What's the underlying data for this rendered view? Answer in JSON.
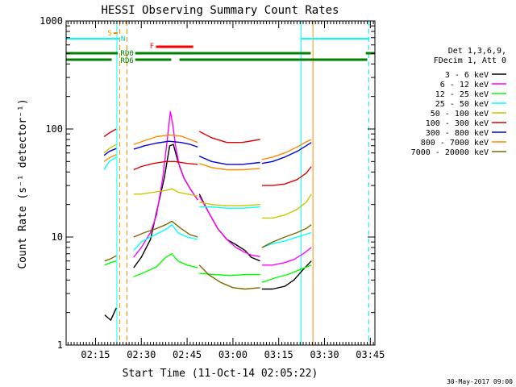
{
  "chart_data": {
    "type": "line",
    "title": "HESSI Observing Summary Count Rates",
    "xlabel": "Start Time (11-Oct-14 02:05:22)",
    "ylabel": "Count Rate (s⁻¹ detector⁻¹)",
    "ylog": true,
    "ylim": [
      1,
      1000
    ],
    "xlim_min": [
      5.37,
      106.5
    ],
    "x_ticks": [
      {
        "t": 15,
        "label": "02:15"
      },
      {
        "t": 30,
        "label": "02:30"
      },
      {
        "t": 45,
        "label": "02:45"
      },
      {
        "t": 60,
        "label": "03:00"
      },
      {
        "t": 75,
        "label": "03:15"
      },
      {
        "t": 90,
        "label": "03:30"
      },
      {
        "t": 105,
        "label": "03:45"
      }
    ],
    "y_ticks": [
      {
        "v": 1,
        "label": "1"
      },
      {
        "v": 10,
        "label": "10"
      },
      {
        "v": 100,
        "label": "100"
      },
      {
        "v": 1000,
        "label": "1000"
      }
    ],
    "legend": {
      "placement": "right",
      "header": [
        "Det 1,3,6,9,",
        "FDecim 1, Att 0"
      ],
      "entries": [
        {
          "label": "3 - 6 keV",
          "color": "#000000"
        },
        {
          "label": "6 - 12 keV",
          "color": "#ff00ff"
        },
        {
          "label": "12 - 25 keV",
          "color": "#00ff00"
        },
        {
          "label": "25 - 50 keV",
          "color": "#00ffff"
        },
        {
          "label": "50 - 100 keV",
          "color": "#c8c800"
        },
        {
          "label": "100 - 300 keV",
          "color": "#e00000"
        },
        {
          "label": "300 - 800 keV",
          "color": "#0000e0"
        },
        {
          "label": "800 - 7000 keV",
          "color": "#ff8c00"
        },
        {
          "label": "7000 - 20000 keV",
          "color": "#7a6a00"
        }
      ]
    },
    "flag_labels": {
      "saa": "S",
      "night": "N",
      "flare": "F",
      "rd0": "RD0",
      "rd6": "RD6"
    },
    "flags": {
      "saa": [
        [
          20.9,
          22.3
        ]
      ],
      "night": [
        [
          5.37,
          22.9
        ],
        [
          82.3,
          104.5
        ]
      ],
      "flare": [
        [
          34.8,
          47.0
        ]
      ],
      "rd0": [
        [
          5.37,
          22.3
        ],
        [
          28.0,
          85.5
        ],
        [
          103.5,
          106.5
        ]
      ],
      "rd6": [
        [
          5.37,
          20.3
        ],
        [
          28.0,
          39.8
        ],
        [
          42.5,
          104.0
        ]
      ]
    },
    "vlines": [
      {
        "t": 5.37,
        "color": "#00ffff",
        "style": "solid"
      },
      {
        "t": 22.0,
        "color": "#00ffff",
        "style": "solid"
      },
      {
        "t": 22.9,
        "color": "#ff8c00",
        "style": "dashed"
      },
      {
        "t": 25.3,
        "color": "#ff8c00",
        "style": "dashed"
      },
      {
        "t": 82.3,
        "color": "#00ffff",
        "style": "solid"
      },
      {
        "t": 86.2,
        "color": "#ff8c00",
        "style": "solid"
      },
      {
        "t": 104.5,
        "color": "#00ffff",
        "style": "dashed"
      }
    ],
    "series": [
      {
        "label": "3 - 6 keV",
        "color": "#000000",
        "segments": [
          {
            "x": [
              18.0,
              20.0,
              21.8
            ],
            "y": [
              1.9,
              1.7,
              2.2
            ]
          },
          {
            "x": [
              27.5,
              30,
              33,
              35,
              37.5,
              39.3,
              40.5,
              42,
              44,
              46,
              48.5
            ],
            "y": [
              5.2,
              6.5,
              9.5,
              17,
              35,
              70,
              72,
              50,
              35,
              28,
              22
            ]
          },
          {
            "x": [
              49,
              52,
              55,
              58,
              61,
              64,
              66,
              68.9
            ],
            "y": [
              25,
              17,
              12,
              9.5,
              8.5,
              7.5,
              6.5,
              6
            ]
          },
          {
            "x": [
              69.5,
              73,
              77,
              80,
              83,
              85.7
            ],
            "y": [
              3.3,
              3.3,
              3.5,
              4,
              5,
              6
            ]
          }
        ]
      },
      {
        "label": "6 - 12 keV",
        "color": "#ff00ff",
        "segments": [
          {
            "x": [
              27.5,
              30,
              33,
              35,
              37,
              38.5,
              39.5,
              40.3,
              41.2,
              42.5,
              44,
              46,
              48.5
            ],
            "y": [
              6.5,
              8,
              11,
              16,
              35,
              80,
              145,
              110,
              70,
              45,
              35,
              28,
              22
            ]
          },
          {
            "x": [
              49,
              52,
              55,
              58,
              61,
              64,
              66,
              68.9
            ],
            "y": [
              24,
              17,
              12,
              9.5,
              8,
              7.2,
              6.8,
              6.6
            ]
          },
          {
            "x": [
              69.5,
              73,
              77,
              80,
              83,
              85.7
            ],
            "y": [
              5.5,
              5.5,
              5.8,
              6.2,
              7,
              8
            ]
          }
        ]
      },
      {
        "label": "12 - 25 keV",
        "color": "#00ff00",
        "segments": [
          {
            "x": [
              18,
              20,
              21.8
            ],
            "y": [
              5.5,
              5.8,
              6
            ]
          },
          {
            "x": [
              27.5,
              31,
              35,
              38,
              40,
              42,
              45,
              48.5
            ],
            "y": [
              4.3,
              4.7,
              5.3,
              6.5,
              7,
              6,
              5.5,
              5.2
            ]
          },
          {
            "x": [
              49,
              54,
              59,
              64,
              68.9
            ],
            "y": [
              4.6,
              4.5,
              4.4,
              4.5,
              4.5
            ]
          },
          {
            "x": [
              69.5,
              74,
              78,
              82,
              85.7
            ],
            "y": [
              3.8,
              4.2,
              4.5,
              5,
              5.5
            ]
          }
        ]
      },
      {
        "label": "25 - 50 keV",
        "color": "#00ffff",
        "segments": [
          {
            "x": [
              17.8,
              19.5,
              21.8
            ],
            "y": [
              42,
              50,
              55
            ]
          },
          {
            "x": [
              27.5,
              30,
              33,
              36,
              38.5,
              40,
              42,
              45,
              48.5
            ],
            "y": [
              7.5,
              9,
              10,
              11,
              12,
              13,
              11,
              10,
              9.5
            ]
          },
          {
            "x": [
              49,
              53,
              58,
              63,
              68.9
            ],
            "y": [
              19,
              19,
              18.5,
              18.5,
              19
            ]
          },
          {
            "x": [
              69.5,
              73,
              77,
              81,
              85.7
            ],
            "y": [
              8,
              8.7,
              9.2,
              10,
              11
            ]
          }
        ]
      },
      {
        "label": "50 - 100 keV",
        "color": "#c8c800",
        "segments": [
          {
            "x": [
              17.8,
              19.5,
              21.8
            ],
            "y": [
              60,
              66,
              72
            ]
          },
          {
            "x": [
              27.5,
              30,
              34,
              38,
              40,
              42,
              45,
              48.5
            ],
            "y": [
              25,
              25,
              26,
              27,
              28,
              26,
              25,
              24
            ]
          },
          {
            "x": [
              49,
              53,
              58,
              63,
              68.9
            ],
            "y": [
              21,
              20,
              19.5,
              19.5,
              20
            ]
          },
          {
            "x": [
              69.5,
              73,
              77,
              81,
              84,
              85.7
            ],
            "y": [
              15,
              15,
              16,
              18,
              21,
              25
            ]
          }
        ]
      },
      {
        "label": "100 - 300 keV",
        "color": "#e00000",
        "segments": [
          {
            "x": [
              17.8,
              19.5,
              21.8
            ],
            "y": [
              85,
              92,
              100
            ]
          },
          {
            "x": [
              27.5,
              30,
              34,
              38,
              41,
              45,
              48.5
            ],
            "y": [
              42,
              45,
              48,
              50,
              50,
              48,
              47
            ]
          },
          {
            "x": [
              49,
              53,
              58,
              63,
              68.9
            ],
            "y": [
              95,
              83,
              75,
              75,
              80
            ]
          },
          {
            "x": [
              69.5,
              73,
              77,
              81,
              84,
              85.7
            ],
            "y": [
              30,
              30,
              31,
              34,
              39,
              45
            ]
          }
        ]
      },
      {
        "label": "300 - 800 keV",
        "color": "#0000e0",
        "segments": [
          {
            "x": [
              17.8,
              19.5,
              21.8
            ],
            "y": [
              57,
              62,
              66
            ]
          },
          {
            "x": [
              27.5,
              31,
              35,
              39,
              43,
              46,
              48.5
            ],
            "y": [
              65,
              70,
              74,
              77,
              75,
              72,
              68
            ]
          },
          {
            "x": [
              49,
              53,
              58,
              63,
              68.9
            ],
            "y": [
              56,
              50,
              47,
              47,
              49
            ]
          },
          {
            "x": [
              69.5,
              73,
              77,
              81,
              84,
              85.7
            ],
            "y": [
              48,
              50,
              55,
              62,
              70,
              75
            ]
          }
        ]
      },
      {
        "label": "800 - 7000 keV",
        "color": "#ff8c00",
        "segments": [
          {
            "x": [
              17.8,
              19.5,
              21.8
            ],
            "y": [
              50,
              54,
              58
            ]
          },
          {
            "x": [
              27.5,
              31,
              35,
              39,
              43,
              46,
              48.5
            ],
            "y": [
              72,
              78,
              85,
              88,
              86,
              80,
              75
            ]
          },
          {
            "x": [
              49,
              53,
              58,
              63,
              68.9
            ],
            "y": [
              48,
              44,
              42,
              42,
              43
            ]
          },
          {
            "x": [
              69.5,
              73,
              77,
              81,
              84,
              85.7
            ],
            "y": [
              52,
              55,
              60,
              68,
              76,
              80
            ]
          }
        ]
      },
      {
        "label": "7000 - 20000 keV",
        "color": "#7a6a00",
        "segments": [
          {
            "x": [
              18,
              20,
              21.8
            ],
            "y": [
              6,
              6.3,
              6.7
            ]
          },
          {
            "x": [
              27.5,
              31,
              35,
              38,
              40,
              43,
              46,
              48.5
            ],
            "y": [
              10,
              11,
              12,
              13,
              14,
              12,
              10.5,
              10
            ]
          },
          {
            "x": [
              49,
              52,
              56,
              60,
              64,
              68.9
            ],
            "y": [
              5.5,
              4.5,
              3.8,
              3.4,
              3.3,
              3.4
            ]
          },
          {
            "x": [
              69.5,
              73,
              77,
              81,
              84,
              85.7
            ],
            "y": [
              8,
              9,
              10,
              11,
              12,
              13
            ]
          }
        ]
      }
    ]
  },
  "footer_date": "30-May-2017 09:00"
}
